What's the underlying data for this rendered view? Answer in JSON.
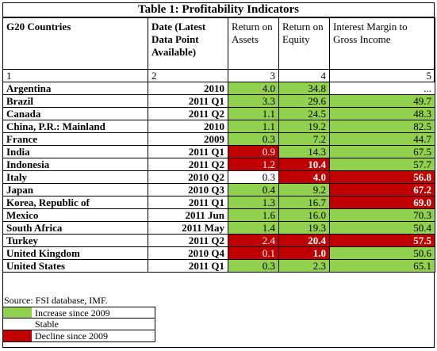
{
  "title": "Table 1: Profitability Indicators",
  "headers": {
    "country": "G20 Countries",
    "date": "Date (Latest Data Point Available)",
    "roa": "Return on Assets",
    "roe": "Return on Equity",
    "margin": "Interest Margin to Gross Income"
  },
  "column_numbers": [
    "1",
    "2",
    "3",
    "4",
    "5"
  ],
  "rows": [
    {
      "country": "Argentina",
      "date": "2010",
      "roa": "4.0",
      "roa_status": "increase",
      "roe": "34.8",
      "roe_status": "increase",
      "margin": "...",
      "margin_status": "stable"
    },
    {
      "country": "Brazil",
      "date": "2011 Q1",
      "roa": "3.3",
      "roa_status": "increase",
      "roe": "29.6",
      "roe_status": "increase",
      "margin": "49.7",
      "margin_status": "increase"
    },
    {
      "country": "Canada",
      "date": "2011 Q2",
      "roa": "1.1",
      "roa_status": "increase",
      "roe": "24.5",
      "roe_status": "increase",
      "margin": "48.3",
      "margin_status": "increase"
    },
    {
      "country": "China, P.R.: Mainland",
      "date": "2010",
      "roa": "1.1",
      "roa_status": "increase",
      "roe": "19.2",
      "roe_status": "increase",
      "margin": "82.5",
      "margin_status": "increase"
    },
    {
      "country": "France",
      "date": "2009",
      "roa": "0.3",
      "roa_status": "increase",
      "roe": "7.2",
      "roe_status": "increase",
      "margin": "44.7",
      "margin_status": "increase"
    },
    {
      "country": "India",
      "date": "2011 Q1",
      "roa": "0.9",
      "roa_status": "decline",
      "roe": "14.3",
      "roe_status": "increase",
      "margin": "67.5",
      "margin_status": "increase"
    },
    {
      "country": "Indonesia",
      "date": "2011 Q2",
      "roa": "1.2",
      "roa_status": "decline",
      "roe": "10.4",
      "roe_status": "decline",
      "margin": "57.7",
      "margin_status": "increase"
    },
    {
      "country": "Italy",
      "date": "2010 Q2",
      "roa": "0.3",
      "roa_status": "stable",
      "roe": "4.0",
      "roe_status": "decline",
      "margin": "56.8",
      "margin_status": "decline"
    },
    {
      "country": "Japan",
      "date": "2010 Q3",
      "roa": "0.4",
      "roa_status": "increase",
      "roe": "9.2",
      "roe_status": "increase",
      "margin": "67.2",
      "margin_status": "decline"
    },
    {
      "country": "Korea, Republic of",
      "date": "2011 Q1",
      "roa": "1.3",
      "roa_status": "increase",
      "roe": "16.7",
      "roe_status": "increase",
      "margin": "69.0",
      "margin_status": "decline"
    },
    {
      "country": "Mexico",
      "date": "2011 Jun",
      "roa": "1.6",
      "roa_status": "increase",
      "roe": "16.0",
      "roe_status": "increase",
      "margin": "70.3",
      "margin_status": "increase"
    },
    {
      "country": "South Africa",
      "date": "2011 May",
      "roa": "1.4",
      "roa_status": "increase",
      "roe": "19.3",
      "roe_status": "increase",
      "margin": "50.4",
      "margin_status": "increase"
    },
    {
      "country": "Turkey",
      "date": "2011 Q2",
      "roa": "2.4",
      "roa_status": "decline",
      "roe": "20.4",
      "roe_status": "decline",
      "margin": "57.5",
      "margin_status": "decline"
    },
    {
      "country": "United Kingdom",
      "date": "2010 Q4",
      "roa": "0.1",
      "roa_status": "decline",
      "roe": "1.0",
      "roe_status": "decline",
      "margin": "50.6",
      "margin_status": "increase"
    },
    {
      "country": "United States",
      "date": "2011 Q1",
      "roa": "0.3",
      "roa_status": "increase",
      "roe": "2.3",
      "roe_status": "increase",
      "margin": "65.1",
      "margin_status": "increase"
    }
  ],
  "source": "Source: FSI database, IMF.",
  "legend": [
    {
      "status": "increase",
      "label": "Increase since 2009"
    },
    {
      "status": "stable",
      "label": "Stable"
    },
    {
      "status": "decline",
      "label": "Decline since 2009"
    }
  ],
  "colors": {
    "increase": "#92d050",
    "stable": "#ffffff",
    "decline": "#c00000"
  }
}
